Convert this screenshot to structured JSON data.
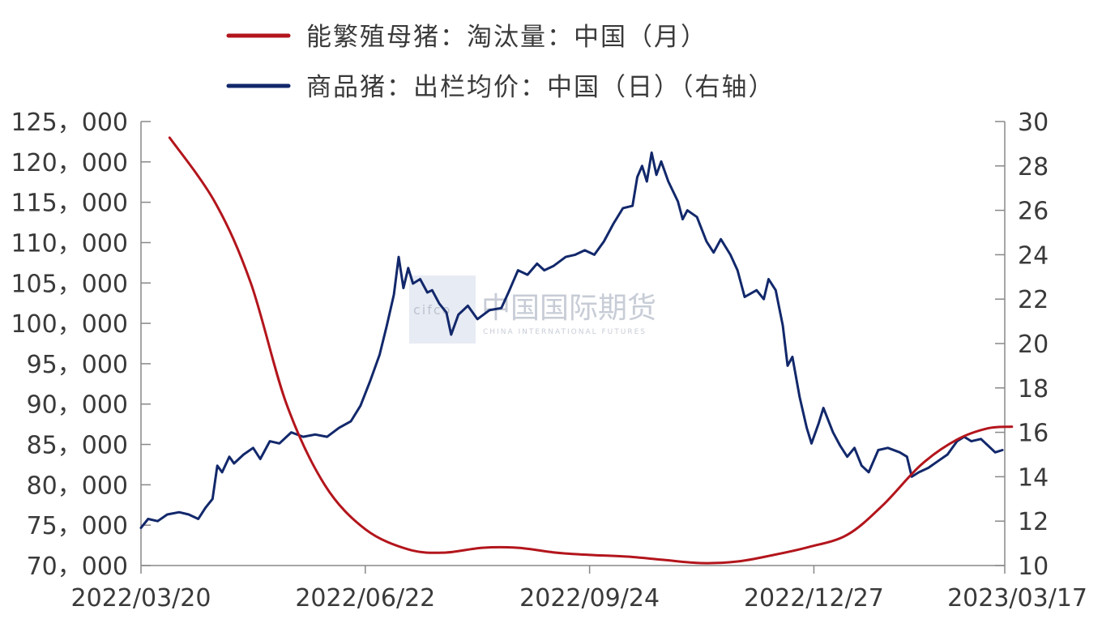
{
  "chart_data": {
    "type": "line",
    "title": "",
    "legend": {
      "placement": "top-center",
      "entries": [
        {
          "label": "能繁殖母猪：淘汰量：中国（月）",
          "color": "#b3151c"
        },
        {
          "label": "商品猪：出栏均价：中国（日）（右轴）",
          "color": "#12286b"
        }
      ]
    },
    "x_axis": {
      "type": "date",
      "range": [
        "2022-03-20",
        "2023-03-17"
      ],
      "tick_labels": [
        "2022/03/20",
        "2022/06/22",
        "2022/09/24",
        "2022/12/27",
        "2023/03/17"
      ],
      "tick_dates": [
        "2022-03-20",
        "2022-06-22",
        "2022-09-24",
        "2022-12-27",
        "2023-03-17"
      ]
    },
    "y_left": {
      "range": [
        70000,
        125000
      ],
      "tick_labels": [
        "125，000",
        "120，000",
        "115，000",
        "110，000",
        "105，000",
        "100，000",
        "95，000",
        "90，000",
        "85，000",
        "80，000",
        "75，000",
        "70，000"
      ],
      "ticks": [
        125000,
        120000,
        115000,
        110000,
        105000,
        100000,
        95000,
        90000,
        85000,
        80000,
        75000,
        70000
      ]
    },
    "y_right": {
      "range": [
        10,
        30
      ],
      "tick_labels": [
        "30",
        "28",
        "26",
        "24",
        "22",
        "20",
        "18",
        "16",
        "14",
        "12",
        "10"
      ],
      "ticks": [
        30,
        28,
        26,
        24,
        22,
        20,
        18,
        16,
        14,
        12,
        10
      ]
    },
    "grid": false,
    "series": [
      {
        "name": "能繁殖母猪：淘汰量：中国（月）",
        "axis": "left",
        "color": "#b3151c",
        "points": [
          [
            "2022-04-01",
            123000
          ],
          [
            "2022-04-20",
            115000
          ],
          [
            "2022-05-05",
            105000
          ],
          [
            "2022-05-20",
            90000
          ],
          [
            "2022-06-05",
            80000
          ],
          [
            "2022-06-22",
            74500
          ],
          [
            "2022-07-10",
            72000
          ],
          [
            "2022-07-25",
            71600
          ],
          [
            "2022-08-10",
            72200
          ],
          [
            "2022-08-25",
            72200
          ],
          [
            "2022-09-10",
            71600
          ],
          [
            "2022-09-25",
            71300
          ],
          [
            "2022-10-10",
            71100
          ],
          [
            "2022-10-25",
            70700
          ],
          [
            "2022-11-10",
            70300
          ],
          [
            "2022-11-25",
            70500
          ],
          [
            "2022-12-10",
            71300
          ],
          [
            "2022-12-25",
            72300
          ],
          [
            "2023-01-10",
            73800
          ],
          [
            "2023-01-25",
            77500
          ],
          [
            "2023-02-10",
            82500
          ],
          [
            "2023-02-25",
            85600
          ],
          [
            "2023-03-10",
            87000
          ],
          [
            "2023-03-20",
            87200
          ]
        ]
      },
      {
        "name": "商品猪：出栏均价：中国（日）（右轴）",
        "axis": "right",
        "color": "#12286b",
        "points": [
          [
            "2022-03-20",
            11.7
          ],
          [
            "2022-03-23",
            12.1
          ],
          [
            "2022-03-27",
            12.0
          ],
          [
            "2022-03-31",
            12.3
          ],
          [
            "2022-04-05",
            12.4
          ],
          [
            "2022-04-09",
            12.3
          ],
          [
            "2022-04-13",
            12.1
          ],
          [
            "2022-04-16",
            12.6
          ],
          [
            "2022-04-19",
            13.0
          ],
          [
            "2022-04-21",
            14.5
          ],
          [
            "2022-04-23",
            14.2
          ],
          [
            "2022-04-26",
            14.9
          ],
          [
            "2022-04-28",
            14.6
          ],
          [
            "2022-05-02",
            15.0
          ],
          [
            "2022-05-06",
            15.3
          ],
          [
            "2022-05-09",
            14.8
          ],
          [
            "2022-05-13",
            15.6
          ],
          [
            "2022-05-17",
            15.5
          ],
          [
            "2022-05-22",
            16.0
          ],
          [
            "2022-05-27",
            15.8
          ],
          [
            "2022-06-01",
            15.9
          ],
          [
            "2022-06-06",
            15.8
          ],
          [
            "2022-06-11",
            16.2
          ],
          [
            "2022-06-16",
            16.5
          ],
          [
            "2022-06-20",
            17.2
          ],
          [
            "2022-06-24",
            18.3
          ],
          [
            "2022-06-28",
            19.5
          ],
          [
            "2022-07-01",
            20.8
          ],
          [
            "2022-07-04",
            22.2
          ],
          [
            "2022-07-06",
            23.9
          ],
          [
            "2022-07-08",
            22.5
          ],
          [
            "2022-07-10",
            23.4
          ],
          [
            "2022-07-12",
            22.7
          ],
          [
            "2022-07-15",
            22.9
          ],
          [
            "2022-07-18",
            22.3
          ],
          [
            "2022-07-20",
            22.4
          ],
          [
            "2022-07-23",
            21.8
          ],
          [
            "2022-07-26",
            21.4
          ],
          [
            "2022-07-28",
            20.4
          ],
          [
            "2022-07-31",
            21.3
          ],
          [
            "2022-08-04",
            21.7
          ],
          [
            "2022-08-08",
            21.1
          ],
          [
            "2022-08-13",
            21.5
          ],
          [
            "2022-08-18",
            21.6
          ],
          [
            "2022-08-21",
            22.3
          ],
          [
            "2022-08-25",
            23.3
          ],
          [
            "2022-08-29",
            23.1
          ],
          [
            "2022-09-02",
            23.6
          ],
          [
            "2022-09-05",
            23.3
          ],
          [
            "2022-09-09",
            23.5
          ],
          [
            "2022-09-14",
            23.9
          ],
          [
            "2022-09-18",
            24.0
          ],
          [
            "2022-09-22",
            24.2
          ],
          [
            "2022-09-26",
            24.0
          ],
          [
            "2022-09-30",
            24.6
          ],
          [
            "2022-10-04",
            25.4
          ],
          [
            "2022-10-08",
            26.1
          ],
          [
            "2022-10-12",
            26.2
          ],
          [
            "2022-10-14",
            27.5
          ],
          [
            "2022-10-16",
            28.0
          ],
          [
            "2022-10-18",
            27.3
          ],
          [
            "2022-10-20",
            28.6
          ],
          [
            "2022-10-22",
            27.6
          ],
          [
            "2022-10-24",
            28.2
          ],
          [
            "2022-10-27",
            27.3
          ],
          [
            "2022-10-31",
            26.4
          ],
          [
            "2022-11-02",
            25.6
          ],
          [
            "2022-11-04",
            26.0
          ],
          [
            "2022-11-08",
            25.7
          ],
          [
            "2022-11-12",
            24.6
          ],
          [
            "2022-11-15",
            24.1
          ],
          [
            "2022-11-18",
            24.7
          ],
          [
            "2022-11-22",
            24.0
          ],
          [
            "2022-11-25",
            23.3
          ],
          [
            "2022-11-28",
            22.1
          ],
          [
            "2022-12-03",
            22.4
          ],
          [
            "2022-12-06",
            22.0
          ],
          [
            "2022-12-08",
            22.9
          ],
          [
            "2022-12-11",
            22.4
          ],
          [
            "2022-12-14",
            20.8
          ],
          [
            "2022-12-16",
            19.0
          ],
          [
            "2022-12-18",
            19.4
          ],
          [
            "2022-12-21",
            17.6
          ],
          [
            "2022-12-24",
            16.2
          ],
          [
            "2022-12-26",
            15.5
          ],
          [
            "2022-12-29",
            16.4
          ],
          [
            "2022-12-31",
            17.1
          ],
          [
            "2023-01-04",
            16.0
          ],
          [
            "2023-01-07",
            15.4
          ],
          [
            "2023-01-10",
            14.9
          ],
          [
            "2023-01-13",
            15.3
          ],
          [
            "2023-01-16",
            14.5
          ],
          [
            "2023-01-19",
            14.2
          ],
          [
            "2023-01-23",
            15.2
          ],
          [
            "2023-01-27",
            15.3
          ],
          [
            "2023-02-01",
            15.1
          ],
          [
            "2023-02-04",
            14.9
          ],
          [
            "2023-02-06",
            14.0
          ],
          [
            "2023-02-09",
            14.2
          ],
          [
            "2023-02-13",
            14.4
          ],
          [
            "2023-02-17",
            14.7
          ],
          [
            "2023-02-21",
            15.0
          ],
          [
            "2023-02-25",
            15.6
          ],
          [
            "2023-02-28",
            15.8
          ],
          [
            "2023-03-03",
            15.6
          ],
          [
            "2023-03-07",
            15.7
          ],
          [
            "2023-03-10",
            15.4
          ],
          [
            "2023-03-13",
            15.1
          ],
          [
            "2023-03-16",
            15.2
          ]
        ]
      }
    ]
  },
  "watermark": {
    "text": "中国国际期货",
    "sub": "CHINA INTERNATIONAL FUTURES",
    "logo_text": "cifco"
  }
}
